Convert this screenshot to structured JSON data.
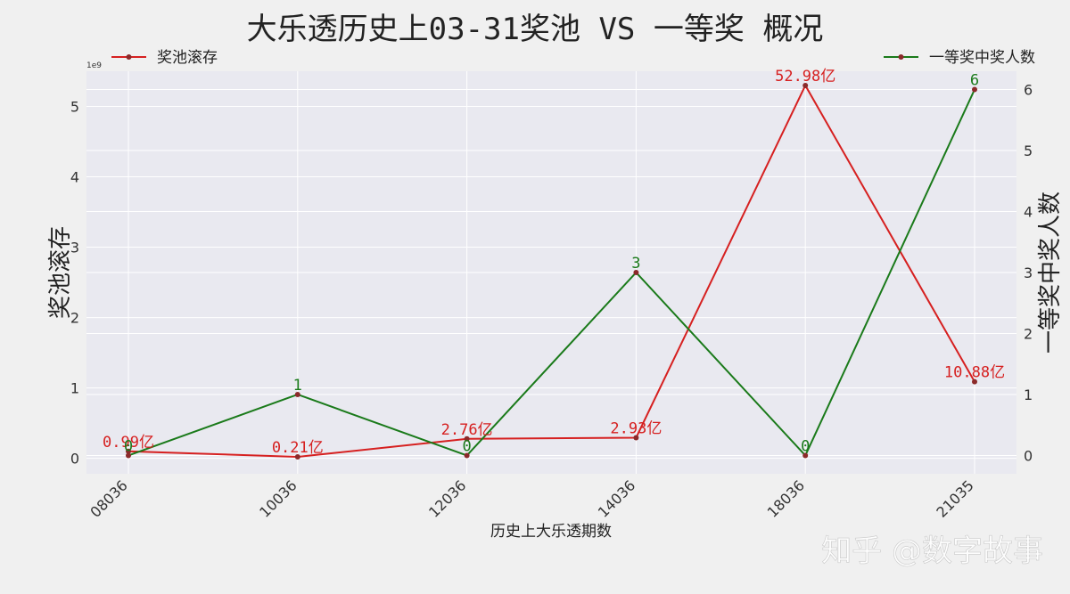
{
  "chart_data": {
    "type": "line",
    "title": "大乐透历史上03-31奖池 VS 一等奖 概况",
    "xlabel": "历史上大乐透期数",
    "ylabel_left": "奖池滚存",
    "ylabel_right": "一等奖中奖人数",
    "left_axis_multiplier": "1e9",
    "categories": [
      "08036",
      "10036",
      "12036",
      "14036",
      "18036",
      "21035"
    ],
    "ylim_left": [
      -0.22,
      5.5
    ],
    "ylim_right": [
      -0.3,
      6.3
    ],
    "yticks_left": [
      0,
      1,
      2,
      3,
      4,
      5
    ],
    "yticks_right": [
      0,
      1,
      2,
      3,
      4,
      5,
      6
    ],
    "grid": true,
    "series": [
      {
        "name": "奖池滚存",
        "axis": "left",
        "color": "#d62020",
        "values": [
          0.099,
          0.021,
          0.276,
          0.293,
          5.298,
          1.088
        ],
        "labels": [
          "0.99亿",
          "0.21亿",
          "2.76亿",
          "2.93亿",
          "52.98亿",
          "10.88亿"
        ],
        "legend_position": "top-left"
      },
      {
        "name": "一等奖中奖人数",
        "axis": "right",
        "color": "#1a7a1a",
        "values": [
          0,
          1,
          0,
          3,
          0,
          6
        ],
        "labels": [
          "0",
          "1",
          "0",
          "3",
          "0",
          "6"
        ],
        "legend_position": "top-right"
      }
    ]
  },
  "watermark": "知乎 @数字故事",
  "colors": {
    "background": "#f0f0f0",
    "plot_background": "#e9e9f0",
    "grid": "#ffffff",
    "marker": "#8b2a2a"
  }
}
